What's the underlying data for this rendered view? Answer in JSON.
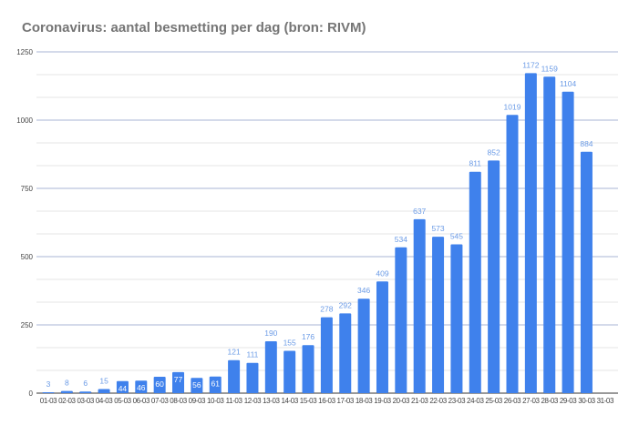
{
  "chart_data": {
    "type": "bar",
    "title": "Coronavirus: aantal besmetting per dag (bron: RIVM)",
    "xlabel": "",
    "ylabel": "",
    "ylim": [
      0,
      1250
    ],
    "yticks": [
      0,
      250,
      500,
      750,
      1000,
      1250
    ],
    "grid": true,
    "categories": [
      "01-03",
      "02-03",
      "03-03",
      "04-03",
      "05-03",
      "06-03",
      "07-03",
      "08-03",
      "09-03",
      "10-03",
      "11-03",
      "12-03",
      "13-03",
      "14-03",
      "15-03",
      "16-03",
      "17-03",
      "18-03",
      "19-03",
      "20-03",
      "21-03",
      "22-03",
      "23-03",
      "24-03",
      "25-03",
      "26-03",
      "27-03",
      "28-03",
      "29-03",
      "30-03",
      "31-03"
    ],
    "values": [
      3,
      8,
      6,
      15,
      44,
      46,
      60,
      77,
      56,
      61,
      121,
      111,
      190,
      155,
      176,
      278,
      292,
      346,
      409,
      534,
      637,
      573,
      545,
      811,
      852,
      1019,
      1172,
      1159,
      1104,
      884,
      null
    ],
    "colors": {
      "bar": "#3f81ec",
      "label": "#6b9be6",
      "label_inside": "#ffffff",
      "major_grid": "#a9b6d6",
      "minor_grid": "#e6e6e6"
    }
  }
}
